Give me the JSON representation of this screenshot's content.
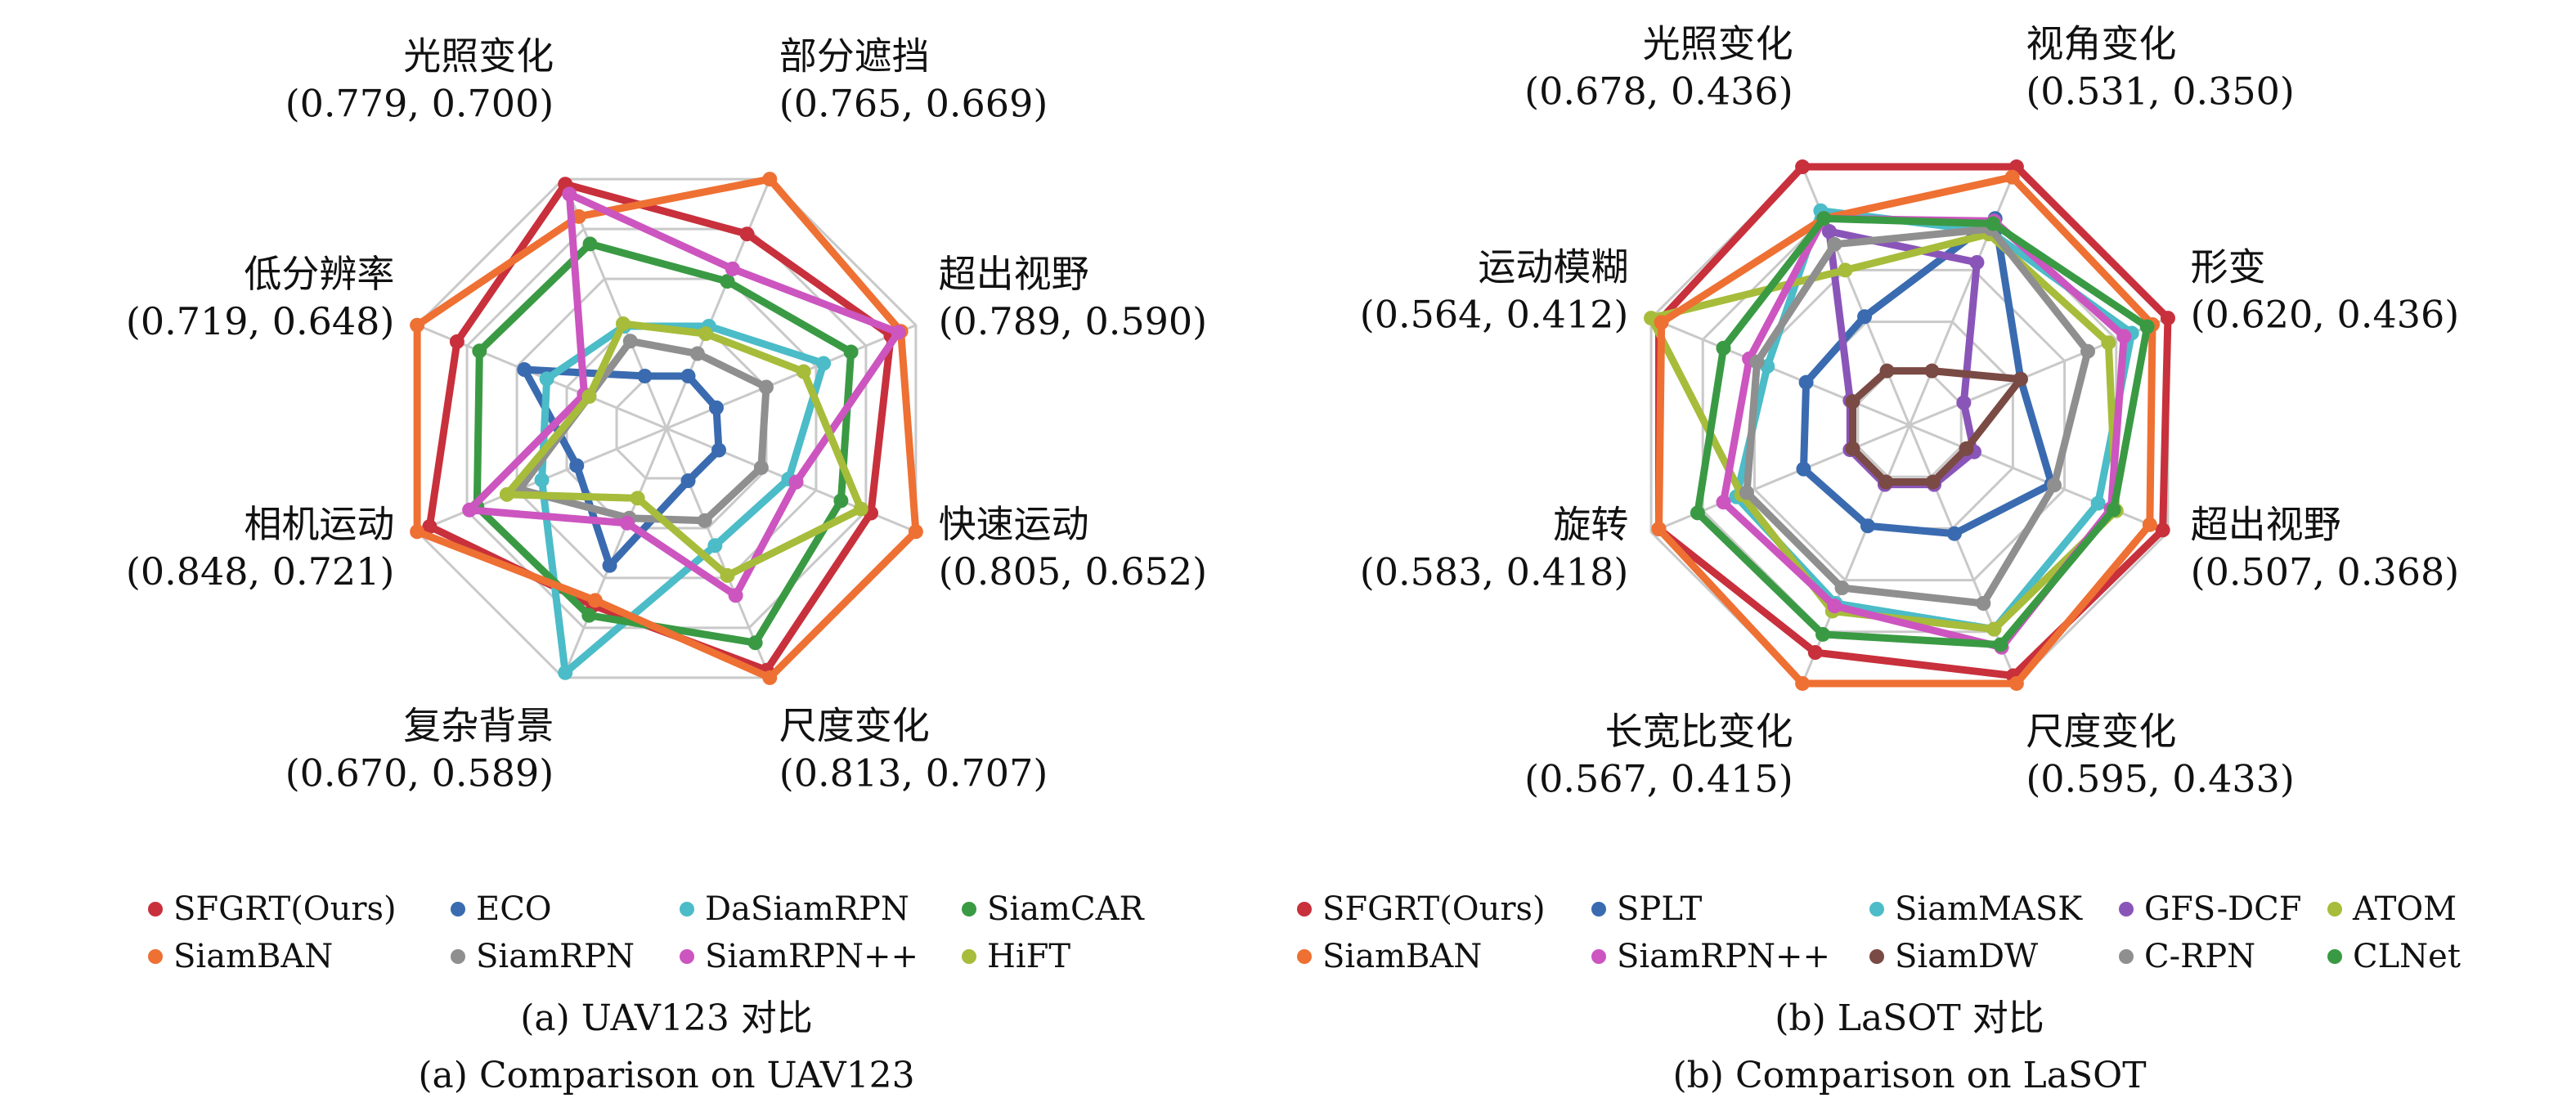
{
  "chart_data": [
    {
      "type": "radar",
      "max": 1.0,
      "grid": true,
      "caption_cn": "(a)  UAV123 对比",
      "caption_en": "(a)  Comparison on UAV123",
      "axes": [
        {
          "name": "光照变化",
          "pair": "(0.779, 0.700)"
        },
        {
          "name": "部分遮挡",
          "pair": "(0.765, 0.669)"
        },
        {
          "name": "超出视野",
          "pair": "(0.789, 0.590)"
        },
        {
          "name": "快速运动",
          "pair": "(0.805, 0.652)"
        },
        {
          "name": "尺度变化",
          "pair": "(0.813, 0.707)"
        },
        {
          "name": "复杂背景",
          "pair": "(0.670, 0.589)"
        },
        {
          "name": "相机运动",
          "pair": "(0.848, 0.721)"
        },
        {
          "name": "低分辨率",
          "pair": "(0.719, 0.648)"
        }
      ],
      "series": [
        {
          "name": "SFGRT(Ours)",
          "color": "#c8303c",
          "values": [
            0.98,
            0.78,
            0.9,
            0.82,
            0.97,
            0.71,
            0.95,
            0.84
          ]
        },
        {
          "name": "ECO",
          "color": "#3a6bb0",
          "values": [
            0.21,
            0.21,
            0.2,
            0.21,
            0.21,
            0.55,
            0.36,
            0.57
          ]
        },
        {
          "name": "DaSiamRPN",
          "color": "#4bbcc8",
          "values": [
            0.41,
            0.41,
            0.63,
            0.49,
            0.47,
            0.98,
            0.5,
            0.48
          ]
        },
        {
          "name": "SiamCAR",
          "color": "#3a9a44",
          "values": [
            0.74,
            0.59,
            0.74,
            0.7,
            0.86,
            0.75,
            0.76,
            0.75
          ]
        },
        {
          "name": "SiamBAN",
          "color": "#ee7033",
          "values": [
            0.85,
            1.0,
            0.94,
            1.0,
            1.0,
            0.69,
            1.0,
            1.0
          ]
        },
        {
          "name": "SiamRPN",
          "color": "#8f8f8f",
          "values": [
            0.35,
            0.3,
            0.4,
            0.38,
            0.37,
            0.36,
            0.59,
            0.31
          ]
        },
        {
          "name": "SiamRPN++",
          "color": "#cc55c0",
          "values": [
            0.94,
            0.64,
            0.93,
            0.52,
            0.67,
            0.38,
            0.79,
            0.33
          ]
        },
        {
          "name": "HiFT",
          "color": "#a7bc3a",
          "values": [
            0.42,
            0.38,
            0.55,
            0.78,
            0.59,
            0.28,
            0.64,
            0.31
          ]
        }
      ]
    },
    {
      "type": "radar",
      "max": 1.0,
      "grid": true,
      "caption_cn": "(b)  LaSOT 对比",
      "caption_en": "(b)  Comparison on LaSOT",
      "axes": [
        {
          "name": "视角变化",
          "pair": "(0.531, 0.350)"
        },
        {
          "name": "形变",
          "pair": "(0.620, 0.436)"
        },
        {
          "name": "超出视野",
          "pair": "(0.507, 0.368)"
        },
        {
          "name": "尺度变化",
          "pair": "(0.595, 0.433)"
        },
        {
          "name": "长宽比变化",
          "pair": "(0.567, 0.415)"
        },
        {
          "name": "旋转",
          "pair": "(0.583, 0.418)"
        },
        {
          "name": "运动模糊",
          "pair": "(0.564, 0.412)"
        },
        {
          "name": "光照变化",
          "pair": "(0.678, 0.436)"
        }
      ],
      "series": [
        {
          "name": "SFGRT(Ours)",
          "color": "#c8303c",
          "values": [
            1.0,
            1.0,
            0.98,
            0.97,
            0.88,
            0.97,
            0.97,
            1.0
          ]
        },
        {
          "name": "SPLT",
          "color": "#3a6bb0",
          "values": [
            0.8,
            0.43,
            0.55,
            0.42,
            0.39,
            0.41,
            0.4,
            0.42
          ]
        },
        {
          "name": "SiamMASK",
          "color": "#4bbcc8",
          "values": [
            0.75,
            0.86,
            0.73,
            0.79,
            0.69,
            0.67,
            0.55,
            0.83
          ]
        },
        {
          "name": "GFS-DCF",
          "color": "#8a55b8",
          "values": [
            0.63,
            0.21,
            0.25,
            0.23,
            0.23,
            0.23,
            0.23,
            0.75
          ]
        },
        {
          "name": "ATOM",
          "color": "#a7bc3a",
          "values": [
            0.74,
            0.77,
            0.8,
            0.79,
            0.72,
            0.65,
            1.0,
            0.6
          ]
        },
        {
          "name": "SiamBAN",
          "color": "#ee7033",
          "values": [
            0.96,
            0.94,
            0.93,
            1.0,
            1.0,
            0.97,
            0.96,
            0.8
          ]
        },
        {
          "name": "SiamRPN++",
          "color": "#cc55c0",
          "values": [
            0.79,
            0.83,
            0.78,
            0.86,
            0.7,
            0.72,
            0.62,
            0.8
          ]
        },
        {
          "name": "SiamDW",
          "color": "#7a4a44",
          "values": [
            0.21,
            0.43,
            0.22,
            0.22,
            0.22,
            0.22,
            0.22,
            0.21
          ]
        },
        {
          "name": "C-RPN",
          "color": "#8f8f8f",
          "values": [
            0.76,
            0.69,
            0.56,
            0.69,
            0.63,
            0.63,
            0.59,
            0.7
          ]
        },
        {
          "name": "CLNet",
          "color": "#3a9a44",
          "values": [
            0.78,
            0.92,
            0.79,
            0.85,
            0.81,
            0.82,
            0.72,
            0.8
          ]
        }
      ]
    }
  ]
}
